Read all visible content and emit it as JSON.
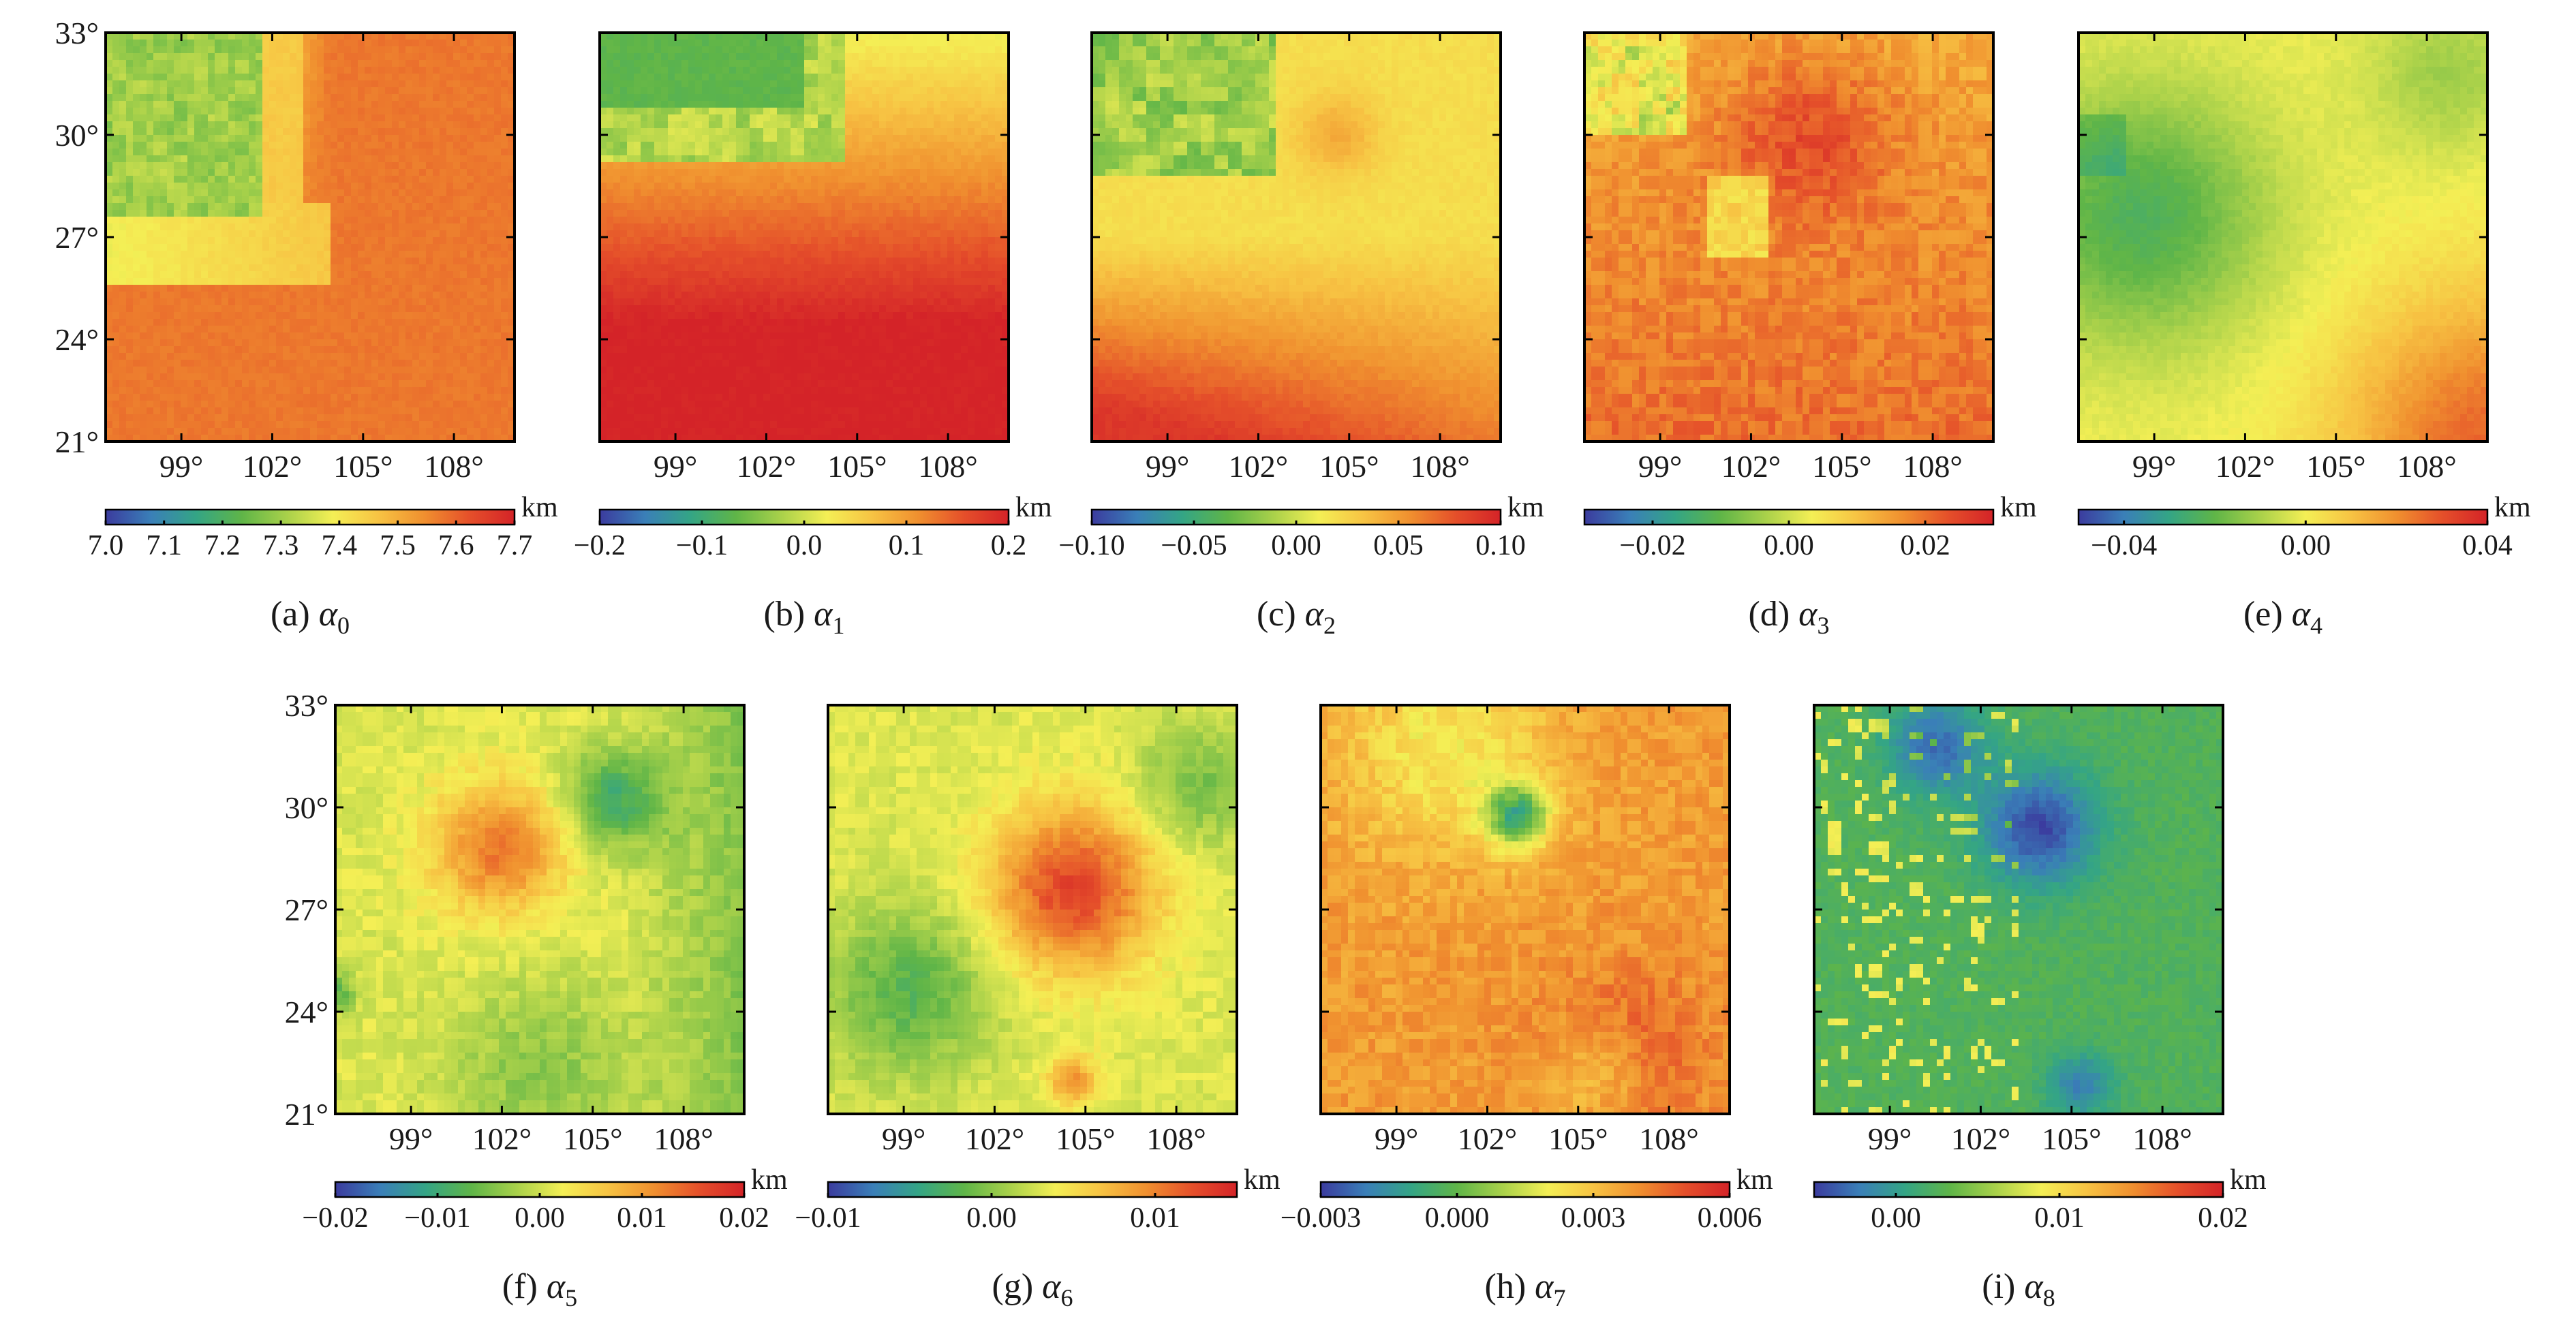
{
  "figure": {
    "lon_ticks": [
      "99°",
      "102°",
      "105°",
      "108°"
    ],
    "lat_ticks": [
      "33°",
      "30°",
      "27°",
      "24°",
      "21°"
    ],
    "colormap": [
      "#3b3b9e",
      "#3a7fb8",
      "#34a585",
      "#5fb548",
      "#a9d14a",
      "#f4ef55",
      "#f7c343",
      "#f0902f",
      "#e5502a",
      "#d42328"
    ]
  },
  "chart_data": [
    {
      "type": "heatmap",
      "panel_letter": "(a)",
      "symbol": "α",
      "subscript": "0",
      "lon_range": [
        96.5,
        110
      ],
      "lat_range": [
        21,
        33
      ],
      "colorbar": {
        "unit": "km",
        "min": 7.0,
        "max": 7.7,
        "ticks": [
          "7.0",
          "7.1",
          "7.2",
          "7.3",
          "7.4",
          "7.5",
          "7.6",
          "7.7"
        ],
        "tick_values": [
          7.0,
          7.1,
          7.2,
          7.3,
          7.4,
          7.5,
          7.6,
          7.7
        ]
      },
      "pattern": "nw-low-se-high"
    },
    {
      "type": "heatmap",
      "panel_letter": "(b)",
      "symbol": "α",
      "subscript": "1",
      "lon_range": [
        96.5,
        110
      ],
      "lat_range": [
        21,
        33
      ],
      "colorbar": {
        "unit": "km",
        "min": -0.2,
        "max": 0.2,
        "ticks": [
          "−0.2",
          "−0.1",
          "0.0",
          "0.1",
          "0.2"
        ],
        "tick_values": [
          -0.2,
          -0.1,
          0.0,
          0.1,
          0.2
        ]
      },
      "pattern": "north-low-south-high"
    },
    {
      "type": "heatmap",
      "panel_letter": "(c)",
      "symbol": "α",
      "subscript": "2",
      "lon_range": [
        96.5,
        110
      ],
      "lat_range": [
        21,
        33
      ],
      "colorbar": {
        "unit": "km",
        "min": -0.1,
        "max": 0.1,
        "ticks": [
          "−0.10",
          "−0.05",
          "0.00",
          "0.05",
          "0.10"
        ],
        "tick_values": [
          -0.1,
          -0.05,
          0.0,
          0.05,
          0.1
        ]
      },
      "pattern": "nw-low-sw-high"
    },
    {
      "type": "heatmap",
      "panel_letter": "(d)",
      "symbol": "α",
      "subscript": "3",
      "lon_range": [
        96.5,
        110
      ],
      "lat_range": [
        21,
        33
      ],
      "colorbar": {
        "unit": "km",
        "min": -0.03,
        "max": 0.03,
        "ticks": [
          "−0.02",
          "0.00",
          "0.02"
        ],
        "tick_values": [
          -0.02,
          0.0,
          0.02
        ]
      },
      "pattern": "mostly-high"
    },
    {
      "type": "heatmap",
      "panel_letter": "(e)",
      "symbol": "α",
      "subscript": "4",
      "lon_range": [
        96.5,
        110
      ],
      "lat_range": [
        21,
        33
      ],
      "colorbar": {
        "unit": "km",
        "min": -0.05,
        "max": 0.04,
        "ticks": [
          "−0.04",
          "0.00",
          "0.04"
        ],
        "tick_values": [
          -0.04,
          0.0,
          0.04
        ]
      },
      "pattern": "west-low-se-high"
    },
    {
      "type": "heatmap",
      "panel_letter": "(f)",
      "symbol": "α",
      "subscript": "5",
      "lon_range": [
        96.5,
        110
      ],
      "lat_range": [
        21,
        33
      ],
      "colorbar": {
        "unit": "km",
        "min": -0.02,
        "max": 0.02,
        "ticks": [
          "−0.02",
          "−0.01",
          "0.00",
          "0.01",
          "0.02"
        ],
        "tick_values": [
          -0.02,
          -0.01,
          0.0,
          0.01,
          0.02
        ]
      },
      "pattern": "central-high-ring"
    },
    {
      "type": "heatmap",
      "panel_letter": "(g)",
      "symbol": "α",
      "subscript": "6",
      "lon_range": [
        96.5,
        110
      ],
      "lat_range": [
        21,
        33
      ],
      "colorbar": {
        "unit": "km",
        "min": -0.01,
        "max": 0.015,
        "ticks": [
          "−0.01",
          "0.00",
          "0.01"
        ],
        "tick_values": [
          -0.01,
          0.0,
          0.01
        ]
      },
      "pattern": "center-high-edges-low"
    },
    {
      "type": "heatmap",
      "panel_letter": "(h)",
      "symbol": "α",
      "subscript": "7",
      "lon_range": [
        96.5,
        110
      ],
      "lat_range": [
        21,
        33
      ],
      "colorbar": {
        "unit": "km",
        "min": -0.003,
        "max": 0.006,
        "ticks": [
          "−0.003",
          "0.000",
          "0.003",
          "0.006"
        ],
        "tick_values": [
          -0.003,
          0.0,
          0.003,
          0.006
        ]
      },
      "pattern": "mostly-high-north-low"
    },
    {
      "type": "heatmap",
      "panel_letter": "(i)",
      "symbol": "α",
      "subscript": "8",
      "lon_range": [
        96.5,
        110
      ],
      "lat_range": [
        21,
        33
      ],
      "colorbar": {
        "unit": "km",
        "min": -0.005,
        "max": 0.02,
        "ticks": [
          "0.00",
          "0.01",
          "0.02"
        ],
        "tick_values": [
          0.0,
          0.01,
          0.02
        ]
      },
      "pattern": "mostly-low-speckled"
    }
  ]
}
